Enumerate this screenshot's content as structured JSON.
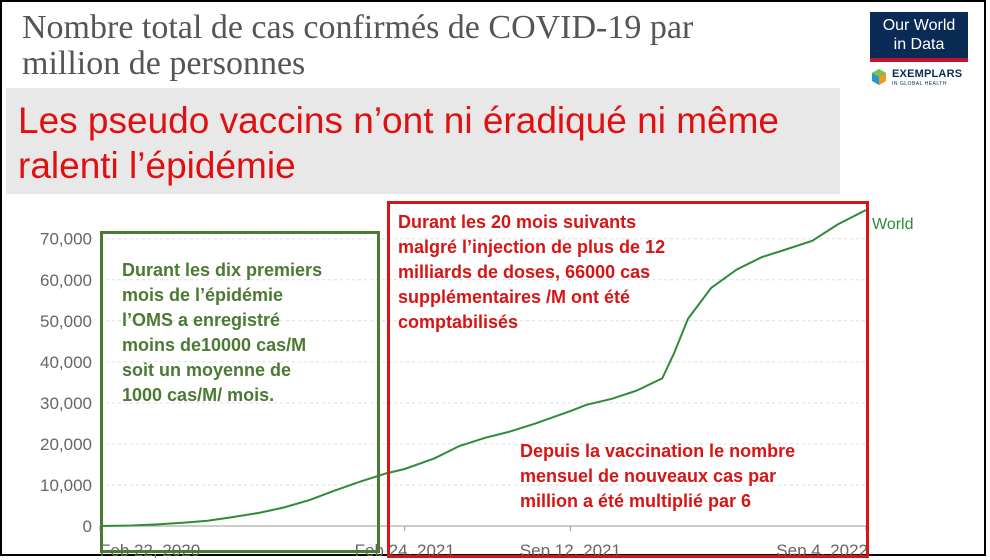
{
  "title": "Nombre total de cas confirmés de COVID-19 par million de personnes",
  "logo": {
    "line1": "Our World",
    "line2": "in Data"
  },
  "partner": {
    "name": "EXEMPLARS",
    "subtitle": "IN GLOBAL HEALTH"
  },
  "banner": "Les pseudo vaccins n’ont ni éradiqué ni même ralenti l’épidémie",
  "annotations": {
    "green": "Durant les dix premiers\nmois de l’épidémie\nl’OMS a enregistré\nmoins de10000 cas/M\nsoit un moyenne de\n1000 cas/M/ mois.",
    "red_top": "Durant les 20 mois suivants\nmalgré l’injection de plus de  12\nmilliards de doses, 66000 cas\nsupplémentaires /M ont été\ncomptabilisés",
    "red_bottom": "Depuis la vaccination le nombre\nmensuel de nouveaux cas par\nmillion a été multiplié par 6"
  },
  "colors": {
    "line": "#2e8b3a",
    "green_box": "#4a7a34",
    "red_box": "#d61515",
    "banner_text": "#e01010",
    "banner_bg": "#e8e8e8",
    "axis_text": "#666666",
    "grid": "#dddddd"
  },
  "chart_data": {
    "type": "line",
    "x_tick_labels": [
      "Feb 22, 2020",
      "Feb 24, 2021",
      "Sep 12, 2021",
      "Sep 4, 2022"
    ],
    "y_tick_labels": [
      "0",
      "10,000",
      "20,000",
      "30,000",
      "40,000",
      "50,000",
      "60,000",
      "70,000"
    ],
    "y_ticks": [
      0,
      10000,
      20000,
      30000,
      40000,
      50000,
      60000,
      70000
    ],
    "ylim": [
      0,
      77000
    ],
    "grid": true,
    "series": [
      {
        "name": "World",
        "x": [
          "2020-02-22",
          "2020-04-01",
          "2020-05-01",
          "2020-06-01",
          "2020-07-01",
          "2020-08-01",
          "2020-09-01",
          "2020-10-01",
          "2020-11-01",
          "2020-12-01",
          "2021-01-01",
          "2021-02-01",
          "2021-02-24",
          "2021-04-01",
          "2021-05-01",
          "2021-06-01",
          "2021-07-01",
          "2021-08-01",
          "2021-09-12",
          "2021-10-01",
          "2021-11-01",
          "2021-12-01",
          "2022-01-01",
          "2022-01-15",
          "2022-02-01",
          "2022-03-01",
          "2022-04-01",
          "2022-05-01",
          "2022-06-01",
          "2022-07-01",
          "2022-08-01",
          "2022-09-04"
        ],
        "y": [
          0,
          120,
          400,
          800,
          1300,
          2200,
          3200,
          4500,
          6300,
          8600,
          10800,
          12800,
          13900,
          16500,
          19500,
          21500,
          23000,
          25000,
          28000,
          29500,
          31000,
          33000,
          36000,
          42000,
          50500,
          58000,
          62500,
          65500,
          67500,
          69500,
          73500,
          77000
        ]
      }
    ]
  }
}
